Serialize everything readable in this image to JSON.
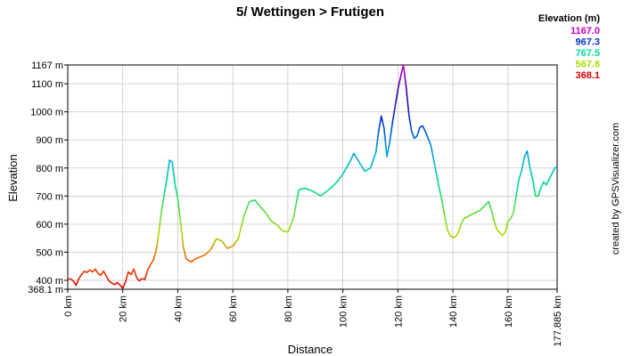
{
  "chart_data": {
    "type": "line",
    "title": "5/ Wettingen > Frutigen",
    "xlabel": "Distance",
    "ylabel": "Elevation",
    "xlim": [
      0,
      177.885
    ],
    "ylim": [
      368.1,
      1167.0
    ],
    "grid": true,
    "x_ticks": [
      {
        "value": 0,
        "label": "0 km"
      },
      {
        "value": 20,
        "label": "20 km"
      },
      {
        "value": 40,
        "label": "40 km"
      },
      {
        "value": 60,
        "label": "60 km"
      },
      {
        "value": 80,
        "label": "80 km"
      },
      {
        "value": 100,
        "label": "100 km"
      },
      {
        "value": 120,
        "label": "120 km"
      },
      {
        "value": 140,
        "label": "140 km"
      },
      {
        "value": 160,
        "label": "160 km"
      },
      {
        "value": 177.885,
        "label": "177.885 km"
      }
    ],
    "y_ticks": [
      {
        "value": 368.1,
        "label": "368.1 m"
      },
      {
        "value": 400,
        "label": "400 m"
      },
      {
        "value": 500,
        "label": "500 m"
      },
      {
        "value": 600,
        "label": "600 m"
      },
      {
        "value": 700,
        "label": "700 m"
      },
      {
        "value": 800,
        "label": "800 m"
      },
      {
        "value": 900,
        "label": "900 m"
      },
      {
        "value": 1000,
        "label": "1000 m"
      },
      {
        "value": 1100,
        "label": "1100 m"
      },
      {
        "value": 1167,
        "label": "1167 m"
      }
    ],
    "color_legend": {
      "title": "Elevation (m)",
      "position": "top-right",
      "entries": [
        {
          "label": "1167.0",
          "color": "#cc00cc"
        },
        {
          "label": "967.3",
          "color": "#0033cc"
        },
        {
          "label": "767.5",
          "color": "#00dd99"
        },
        {
          "label": "567.8",
          "color": "#aadd00"
        },
        {
          "label": "368.1",
          "color": "#dd0000"
        }
      ]
    },
    "watermark": "created by GPSVisualizer.com",
    "series": [
      {
        "x": [
          0,
          1,
          2,
          3,
          4,
          5,
          6,
          7,
          8,
          9,
          10,
          11,
          12,
          13,
          14,
          15,
          16,
          17,
          18,
          19,
          20,
          21,
          22,
          23,
          24,
          25,
          26,
          27,
          28,
          29,
          30,
          31,
          32,
          33,
          34,
          35,
          36,
          37,
          38,
          39,
          40,
          41,
          42,
          43,
          44,
          45,
          46,
          48,
          50,
          52,
          54,
          56,
          58,
          60,
          62,
          64,
          66,
          68,
          70,
          72,
          74,
          76,
          78,
          80,
          82,
          84,
          86,
          88,
          90,
          92,
          94,
          96,
          98,
          100,
          102,
          104,
          106,
          108,
          110,
          112,
          113,
          114,
          115,
          116,
          117,
          118,
          119,
          120,
          121,
          122,
          123,
          124,
          125,
          126,
          127,
          128,
          129,
          130,
          131,
          132,
          133,
          134,
          135,
          136,
          137,
          138,
          139,
          140,
          141,
          142,
          143,
          144,
          146,
          148,
          150,
          152,
          153,
          154,
          155,
          156,
          157,
          158,
          159,
          160,
          161,
          162,
          163,
          164,
          165,
          166,
          167,
          168,
          169,
          170,
          171,
          172,
          173,
          174,
          175,
          176,
          177,
          177.885
        ],
        "values": [
          405,
          405,
          398,
          382,
          405,
          420,
          432,
          428,
          437,
          430,
          440,
          425,
          418,
          433,
          415,
          398,
          390,
          385,
          392,
          383,
          372,
          395,
          430,
          420,
          440,
          410,
          398,
          406,
          403,
          435,
          455,
          470,
          500,
          560,
          640,
          700,
          760,
          828,
          820,
          740,
          690,
          610,
          520,
          478,
          470,
          466,
          474,
          483,
          491,
          510,
          548,
          540,
          514,
          522,
          548,
          628,
          680,
          686,
          662,
          640,
          610,
          598,
          576,
          572,
          620,
          722,
          728,
          722,
          712,
          700,
          716,
          732,
          752,
          778,
          812,
          852,
          820,
          788,
          800,
          856,
          930,
          985,
          940,
          840,
          890,
          960,
          1020,
          1080,
          1125,
          1167,
          1090,
          990,
          930,
          905,
          915,
          945,
          950,
          930,
          905,
          880,
          830,
          780,
          730,
          685,
          630,
          580,
          560,
          552,
          555,
          570,
          600,
          620,
          630,
          640,
          650,
          670,
          680,
          650,
          610,
          580,
          570,
          560,
          570,
          610,
          620,
          640,
          700,
          760,
          790,
          840,
          860,
          800,
          760,
          700,
          700,
          730,
          750,
          740,
          760,
          780,
          800,
          803
        ]
      }
    ]
  }
}
